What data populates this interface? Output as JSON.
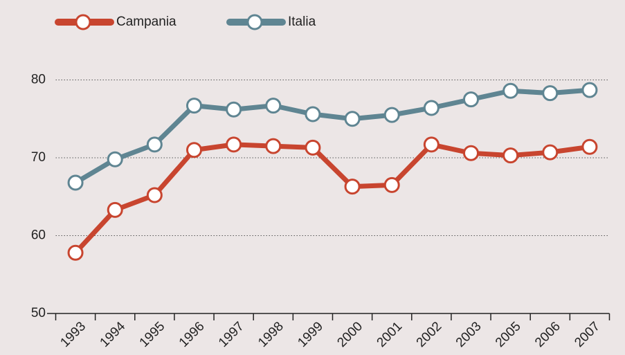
{
  "chart_data": {
    "type": "line",
    "categories": [
      "1993",
      "1994",
      "1995",
      "1996",
      "1997",
      "1998",
      "1999",
      "2000",
      "2001",
      "2002",
      "2003",
      "2005",
      "2006",
      "2007"
    ],
    "series": [
      {
        "name": "Campania",
        "color": "#c8452f",
        "values": [
          57.8,
          63.3,
          65.2,
          71.0,
          71.7,
          71.5,
          71.3,
          66.3,
          66.5,
          71.7,
          70.6,
          70.3,
          70.7,
          71.4
        ]
      },
      {
        "name": "Italia",
        "color": "#5f8592",
        "values": [
          66.8,
          69.8,
          71.7,
          76.7,
          76.2,
          76.7,
          75.6,
          75.0,
          75.5,
          76.4,
          77.5,
          78.6,
          78.3,
          78.7
        ]
      }
    ],
    "ylim": [
      50,
      84
    ],
    "yticks": [
      50,
      60,
      70,
      80
    ],
    "grid": true
  }
}
